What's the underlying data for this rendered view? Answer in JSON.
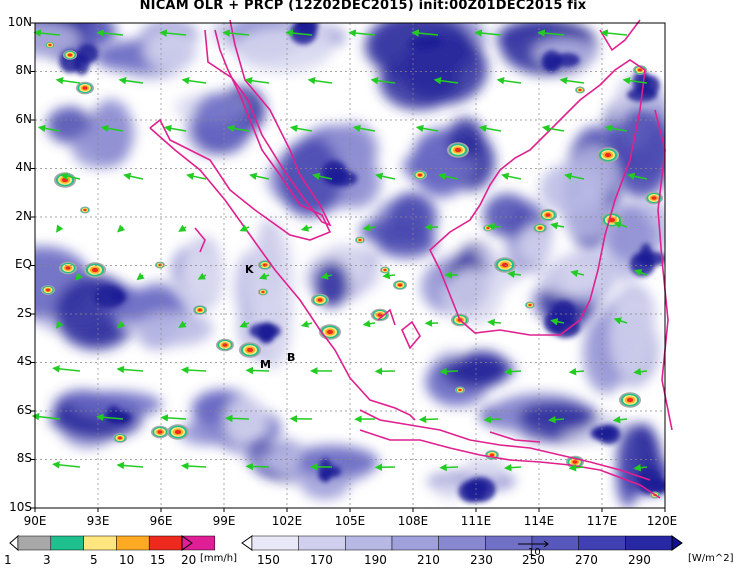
{
  "title": "NICAM OLR + PRCP (12Z02DEC2015) init:00Z01DEC2015 fix",
  "y_ticks": [
    "10N",
    "8N",
    "6N",
    "4N",
    "2N",
    "EQ",
    "2S",
    "4S",
    "6S",
    "8S",
    "10S"
  ],
  "x_ticks": [
    "90E",
    "93E",
    "96E",
    "99E",
    "102E",
    "105E",
    "108E",
    "111E",
    "114E",
    "117E",
    "120E"
  ],
  "site_labels": [
    "K",
    "M",
    "B"
  ],
  "colorbars": {
    "precip": {
      "ticks": [
        "1",
        "3",
        "5",
        "10",
        "15",
        "20"
      ],
      "unit": "[mm/h]",
      "colors": [
        "#ffffff",
        "#a8a8a8",
        "#1ec08e",
        "#ffe680",
        "#ffaa22",
        "#ee2a1e",
        "#e01e96"
      ]
    },
    "olr": {
      "ticks": [
        "150",
        "170",
        "190",
        "210",
        "230",
        "250",
        "270",
        "290"
      ],
      "unit": "[W/m^2]",
      "colors": [
        "#ffffff",
        "#e8e8f6",
        "#d0d0ee",
        "#b8b8e4",
        "#a0a0da",
        "#8888d0",
        "#7070c6",
        "#5858bc",
        "#4040b2",
        "#2828a4",
        "#101090"
      ]
    },
    "vector_label": "10"
  },
  "colors": {
    "coast": "#e0208e",
    "wind": "#22cc22",
    "grid": "#888888"
  }
}
